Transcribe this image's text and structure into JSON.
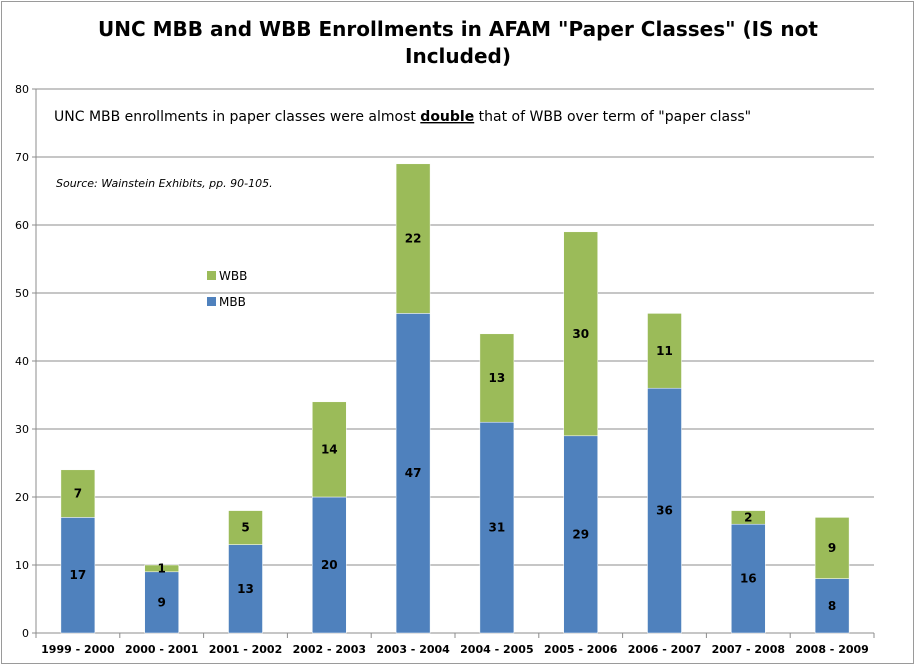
{
  "chart_data": {
    "type": "bar",
    "stacked": true,
    "title_line1": "UNC MBB and WBB Enrollments in AFAM \"Paper Classes\" (IS not",
    "title_line2": "Included)",
    "annotation_before": "UNC MBB enrollments  in paper classes were almost ",
    "annotation_emph": "double",
    "annotation_after": "  that of WBB over term of \"paper class\"",
    "source": "Source: Wainstein Exhibits, pp. 90-105.",
    "categories": [
      "1999 - 2000",
      "2000 - 2001",
      "2001 - 2002",
      "2002 - 2003",
      "2003 - 2004",
      "2004 - 2005",
      "2005 - 2006",
      "2006 - 2007",
      "2007 - 2008",
      "2008 - 2009"
    ],
    "series": [
      {
        "name": "MBB",
        "color": "#4f81bd",
        "values": [
          17,
          9,
          13,
          20,
          47,
          31,
          29,
          36,
          16,
          8
        ]
      },
      {
        "name": "WBB",
        "color": "#9bbb59",
        "values": [
          7,
          1,
          5,
          14,
          22,
          13,
          30,
          11,
          2,
          9
        ]
      }
    ],
    "ylim": [
      0,
      80
    ],
    "yticks": [
      0,
      10,
      20,
      30,
      40,
      50,
      60,
      70,
      80
    ],
    "grid": true,
    "legend_position": "upper-left inside plot"
  }
}
